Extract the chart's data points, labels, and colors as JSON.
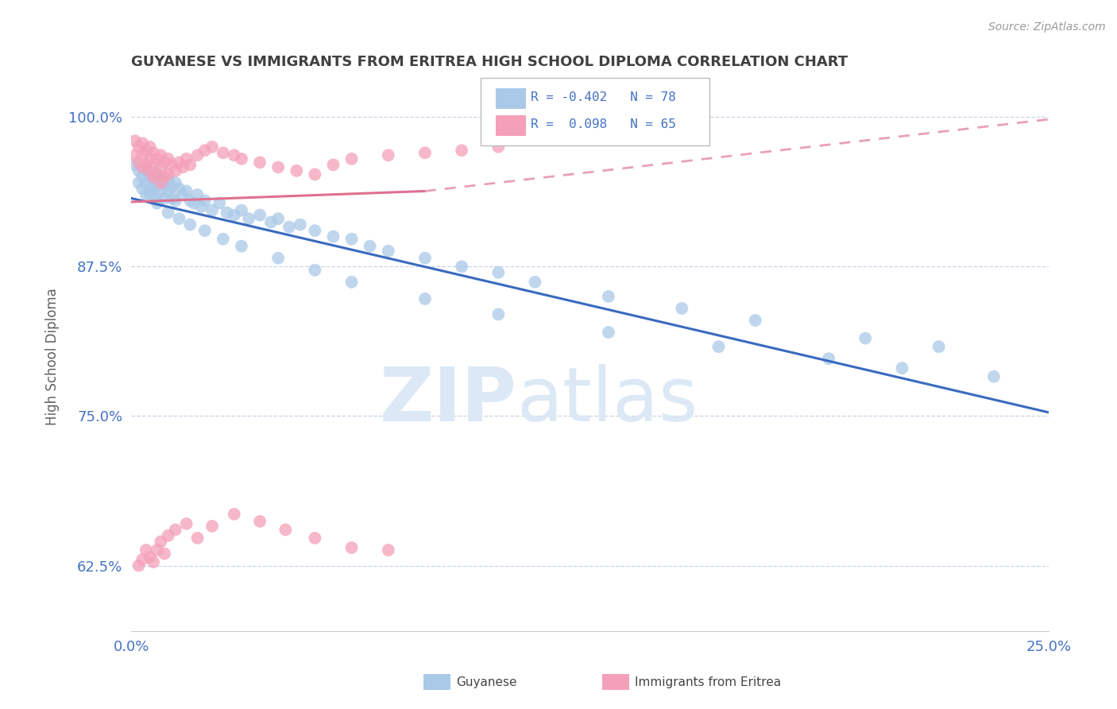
{
  "title": "GUYANESE VS IMMIGRANTS FROM ERITREA HIGH SCHOOL DIPLOMA CORRELATION CHART",
  "source_text": "Source: ZipAtlas.com",
  "ylabel": "High School Diploma",
  "legend_label1": "Guyanese",
  "legend_label2": "Immigrants from Eritrea",
  "R1": -0.402,
  "N1": 78,
  "R2": 0.098,
  "N2": 65,
  "color1": "#aac9e8",
  "color2": "#f4a0b8",
  "line_color1": "#3a6abf",
  "line_color2": "#e07090",
  "line_color2_dash": "#e8a0b8",
  "title_color": "#404040",
  "axis_label_color": "#4472c4",
  "watermark_color": "#dce8f5",
  "xlim": [
    0.0,
    0.25
  ],
  "ylim": [
    0.57,
    1.03
  ],
  "yticks": [
    0.625,
    0.75,
    0.875,
    1.0
  ],
  "ytick_labels": [
    "62.5%",
    "75.0%",
    "87.5%",
    "100.0%"
  ],
  "xticks": [
    0.0,
    0.25
  ],
  "xtick_labels": [
    "0.0%",
    "25.0%"
  ],
  "blue_trend_x0": 0.0,
  "blue_trend_y0": 0.932,
  "blue_trend_x1": 0.25,
  "blue_trend_y1": 0.753,
  "pink_trend_solid_x0": 0.0,
  "pink_trend_solid_y0": 0.929,
  "pink_trend_solid_x1": 0.08,
  "pink_trend_solid_y1": 0.938,
  "pink_trend_dash_x0": 0.08,
  "pink_trend_dash_y0": 0.938,
  "pink_trend_dash_x1": 0.25,
  "pink_trend_dash_y1": 0.998,
  "blue_x": [
    0.001,
    0.002,
    0.002,
    0.003,
    0.003,
    0.004,
    0.004,
    0.004,
    0.005,
    0.005,
    0.006,
    0.006,
    0.007,
    0.007,
    0.007,
    0.008,
    0.008,
    0.009,
    0.009,
    0.01,
    0.01,
    0.011,
    0.011,
    0.012,
    0.012,
    0.013,
    0.014,
    0.015,
    0.016,
    0.017,
    0.018,
    0.019,
    0.02,
    0.022,
    0.024,
    0.026,
    0.028,
    0.03,
    0.032,
    0.035,
    0.038,
    0.04,
    0.043,
    0.046,
    0.05,
    0.055,
    0.06,
    0.065,
    0.07,
    0.08,
    0.09,
    0.1,
    0.11,
    0.13,
    0.15,
    0.17,
    0.2,
    0.22,
    0.005,
    0.007,
    0.01,
    0.013,
    0.016,
    0.02,
    0.025,
    0.03,
    0.04,
    0.05,
    0.06,
    0.08,
    0.1,
    0.13,
    0.16,
    0.19,
    0.21,
    0.235
  ],
  "blue_y": [
    0.96,
    0.955,
    0.945,
    0.95,
    0.94,
    0.955,
    0.945,
    0.935,
    0.95,
    0.94,
    0.948,
    0.938,
    0.952,
    0.942,
    0.932,
    0.948,
    0.938,
    0.945,
    0.932,
    0.948,
    0.938,
    0.942,
    0.932,
    0.945,
    0.93,
    0.94,
    0.935,
    0.938,
    0.93,
    0.928,
    0.935,
    0.925,
    0.93,
    0.922,
    0.928,
    0.92,
    0.918,
    0.922,
    0.915,
    0.918,
    0.912,
    0.915,
    0.908,
    0.91,
    0.905,
    0.9,
    0.898,
    0.892,
    0.888,
    0.882,
    0.875,
    0.87,
    0.862,
    0.85,
    0.84,
    0.83,
    0.815,
    0.808,
    0.935,
    0.928,
    0.92,
    0.915,
    0.91,
    0.905,
    0.898,
    0.892,
    0.882,
    0.872,
    0.862,
    0.848,
    0.835,
    0.82,
    0.808,
    0.798,
    0.79,
    0.783
  ],
  "pink_x": [
    0.001,
    0.001,
    0.002,
    0.002,
    0.003,
    0.003,
    0.003,
    0.004,
    0.004,
    0.005,
    0.005,
    0.005,
    0.006,
    0.006,
    0.006,
    0.007,
    0.007,
    0.008,
    0.008,
    0.008,
    0.009,
    0.009,
    0.01,
    0.01,
    0.011,
    0.012,
    0.013,
    0.014,
    0.015,
    0.016,
    0.018,
    0.02,
    0.022,
    0.025,
    0.028,
    0.03,
    0.035,
    0.04,
    0.045,
    0.05,
    0.055,
    0.06,
    0.07,
    0.08,
    0.09,
    0.1,
    0.002,
    0.003,
    0.004,
    0.005,
    0.006,
    0.007,
    0.008,
    0.009,
    0.01,
    0.012,
    0.015,
    0.018,
    0.022,
    0.028,
    0.035,
    0.042,
    0.05,
    0.06,
    0.07
  ],
  "pink_y": [
    0.98,
    0.968,
    0.975,
    0.962,
    0.978,
    0.968,
    0.958,
    0.972,
    0.96,
    0.975,
    0.965,
    0.955,
    0.97,
    0.96,
    0.95,
    0.965,
    0.952,
    0.968,
    0.958,
    0.945,
    0.962,
    0.95,
    0.965,
    0.952,
    0.96,
    0.955,
    0.962,
    0.958,
    0.965,
    0.96,
    0.968,
    0.972,
    0.975,
    0.97,
    0.968,
    0.965,
    0.962,
    0.958,
    0.955,
    0.952,
    0.96,
    0.965,
    0.968,
    0.97,
    0.972,
    0.975,
    0.625,
    0.63,
    0.638,
    0.632,
    0.628,
    0.638,
    0.645,
    0.635,
    0.65,
    0.655,
    0.66,
    0.648,
    0.658,
    0.668,
    0.662,
    0.655,
    0.648,
    0.64,
    0.638
  ]
}
